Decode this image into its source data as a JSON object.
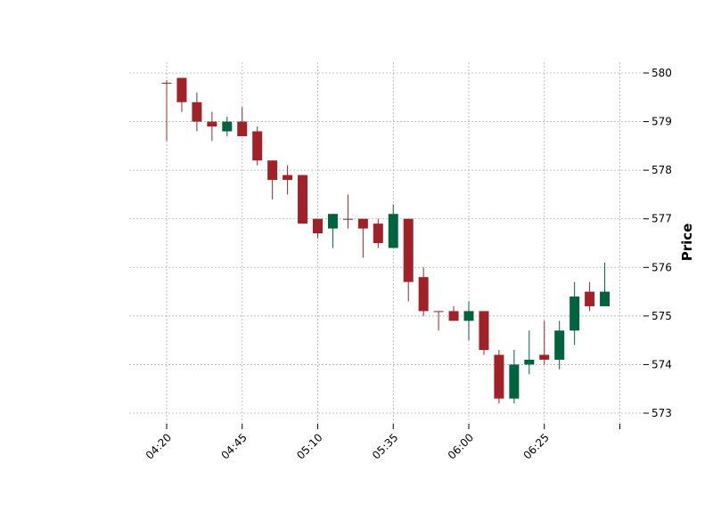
{
  "chart_data": {
    "type": "candlestick",
    "title": "",
    "xlabel": "",
    "ylabel": "Price",
    "ylim": [
      573,
      580
    ],
    "yticks": [
      573,
      574,
      575,
      576,
      577,
      578,
      579,
      580
    ],
    "xtick_labels": [
      {
        "index": 0,
        "label": "04:20"
      },
      {
        "index": 5,
        "label": "04:45"
      },
      {
        "index": 10,
        "label": "05:10"
      },
      {
        "index": 15,
        "label": "05:35"
      },
      {
        "index": 20,
        "label": "06:00"
      },
      {
        "index": 25,
        "label": "06:25"
      },
      {
        "index": 30,
        "label": ""
      }
    ],
    "grid": true,
    "up_color": "#006340",
    "down_color": "#A02128",
    "candles": [
      {
        "open": 579.8,
        "high": 579.85,
        "low": 578.6,
        "close": 579.8
      },
      {
        "open": 579.9,
        "high": 579.9,
        "low": 579.2,
        "close": 579.4
      },
      {
        "open": 579.4,
        "high": 579.6,
        "low": 578.8,
        "close": 579.0
      },
      {
        "open": 579.0,
        "high": 579.2,
        "low": 578.6,
        "close": 578.9
      },
      {
        "open": 578.8,
        "high": 579.1,
        "low": 578.7,
        "close": 579.0
      },
      {
        "open": 579.0,
        "high": 579.3,
        "low": 578.7,
        "close": 578.7
      },
      {
        "open": 578.8,
        "high": 578.9,
        "low": 578.1,
        "close": 578.2
      },
      {
        "open": 578.2,
        "high": 578.2,
        "low": 577.4,
        "close": 577.8
      },
      {
        "open": 577.9,
        "high": 578.1,
        "low": 577.5,
        "close": 577.8
      },
      {
        "open": 577.9,
        "high": 577.9,
        "low": 576.9,
        "close": 576.9
      },
      {
        "open": 577.0,
        "high": 577.0,
        "low": 576.6,
        "close": 576.7
      },
      {
        "open": 576.8,
        "high": 577.1,
        "low": 576.4,
        "close": 577.1
      },
      {
        "open": 577.0,
        "high": 577.5,
        "low": 576.8,
        "close": 577.0
      },
      {
        "open": 577.0,
        "high": 577.0,
        "low": 576.2,
        "close": 576.8
      },
      {
        "open": 576.9,
        "high": 577.0,
        "low": 576.4,
        "close": 576.5
      },
      {
        "open": 576.4,
        "high": 577.3,
        "low": 576.4,
        "close": 577.1
      },
      {
        "open": 577.0,
        "high": 577.0,
        "low": 575.3,
        "close": 575.7
      },
      {
        "open": 575.8,
        "high": 576.0,
        "low": 575.0,
        "close": 575.1
      },
      {
        "open": 575.1,
        "high": 575.1,
        "low": 574.7,
        "close": 575.1
      },
      {
        "open": 575.1,
        "high": 575.2,
        "low": 574.9,
        "close": 574.9
      },
      {
        "open": 574.9,
        "high": 575.3,
        "low": 574.5,
        "close": 575.1
      },
      {
        "open": 575.1,
        "high": 575.1,
        "low": 574.2,
        "close": 574.3
      },
      {
        "open": 574.2,
        "high": 574.3,
        "low": 573.2,
        "close": 573.3
      },
      {
        "open": 573.3,
        "high": 574.3,
        "low": 573.2,
        "close": 574.0
      },
      {
        "open": 574.0,
        "high": 574.7,
        "low": 573.8,
        "close": 574.1
      },
      {
        "open": 574.2,
        "high": 574.9,
        "low": 574.0,
        "close": 574.1
      },
      {
        "open": 574.1,
        "high": 574.9,
        "low": 573.9,
        "close": 574.7
      },
      {
        "open": 574.7,
        "high": 575.7,
        "low": 574.4,
        "close": 575.4
      },
      {
        "open": 575.5,
        "high": 575.7,
        "low": 575.1,
        "close": 575.2
      },
      {
        "open": 575.2,
        "high": 576.1,
        "low": 575.2,
        "close": 575.5
      }
    ]
  }
}
